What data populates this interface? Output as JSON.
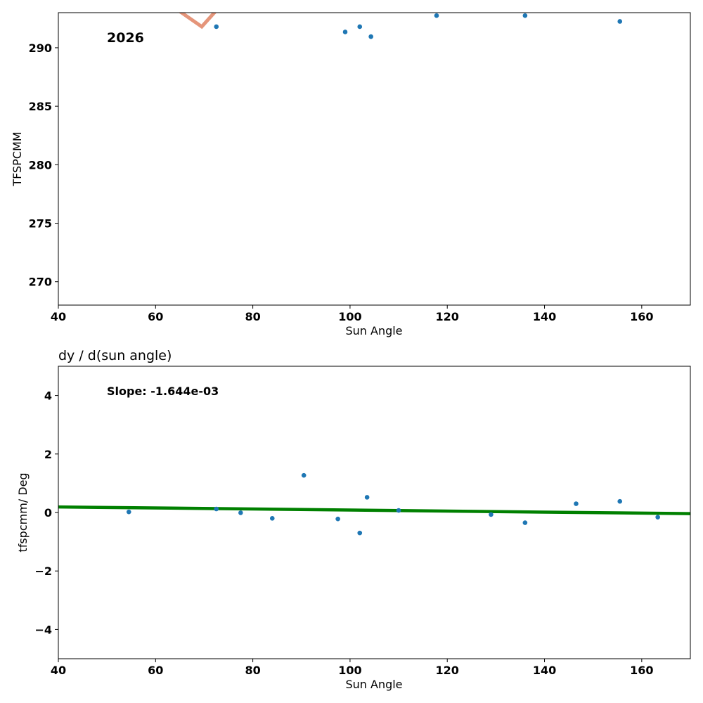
{
  "colors": {
    "points": "#1f77b4",
    "trend_line": "#e5957a",
    "fit_line": "#008000"
  },
  "chart_data": [
    {
      "type": "scatter",
      "title": "",
      "annotation": "2026",
      "xlabel": "Sun Angle",
      "ylabel": "TFSPCMM",
      "xlim": [
        40,
        170
      ],
      "ylim": [
        268,
        293
      ],
      "xticks": [
        40,
        60,
        80,
        100,
        120,
        140,
        160
      ],
      "yticks": [
        270,
        275,
        280,
        285,
        290
      ],
      "points": [
        {
          "x": 72.5,
          "y": 291.8
        },
        {
          "x": 99.0,
          "y": 291.35
        },
        {
          "x": 102.0,
          "y": 291.8
        },
        {
          "x": 104.3,
          "y": 290.95
        },
        {
          "x": 117.8,
          "y": 292.75
        },
        {
          "x": 136.0,
          "y": 292.75
        },
        {
          "x": 155.5,
          "y": 292.25
        }
      ],
      "line": {
        "x": [
          65.0,
          69.5,
          72.3
        ],
        "y": [
          293.1,
          291.8,
          293.1
        ]
      }
    },
    {
      "type": "scatter",
      "title": "dy / d(sun angle)",
      "annotation": "Slope: -1.644e-03",
      "xlabel": "Sun Angle",
      "ylabel": "tfspcmm/ Deg",
      "xlim": [
        40,
        170
      ],
      "ylim": [
        -5,
        5
      ],
      "xticks": [
        40,
        60,
        80,
        100,
        120,
        140,
        160
      ],
      "yticks": [
        -4,
        -2,
        0,
        2,
        4
      ],
      "points": [
        {
          "x": 54.5,
          "y": 0.02
        },
        {
          "x": 72.5,
          "y": 0.12
        },
        {
          "x": 77.5,
          "y": -0.01
        },
        {
          "x": 84.0,
          "y": -0.2
        },
        {
          "x": 90.5,
          "y": 1.27
        },
        {
          "x": 97.5,
          "y": -0.22
        },
        {
          "x": 102.0,
          "y": -0.7
        },
        {
          "x": 103.5,
          "y": 0.52
        },
        {
          "x": 110.0,
          "y": 0.07
        },
        {
          "x": 129.0,
          "y": -0.07
        },
        {
          "x": 136.0,
          "y": -0.35
        },
        {
          "x": 146.5,
          "y": 0.3
        },
        {
          "x": 155.5,
          "y": 0.38
        },
        {
          "x": 163.3,
          "y": -0.16
        }
      ],
      "fit": {
        "x": [
          40,
          170
        ],
        "y": [
          0.19,
          -0.04
        ]
      }
    }
  ]
}
